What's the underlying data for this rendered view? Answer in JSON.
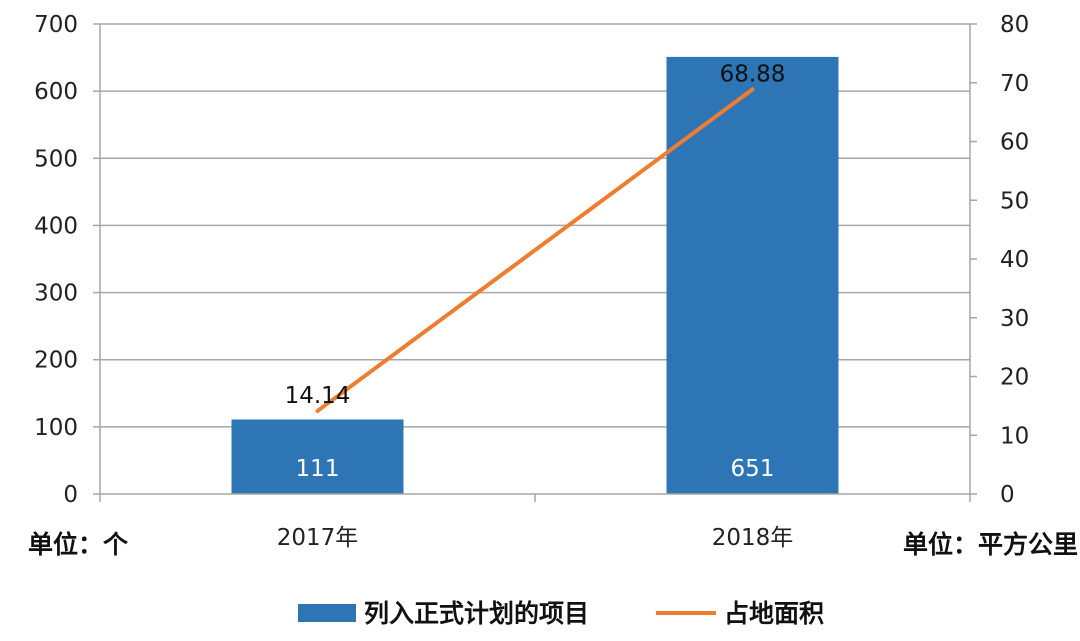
{
  "chart_data": {
    "type": "bar",
    "categories": [
      "2017年",
      "2018年"
    ],
    "series": [
      {
        "name": "列入正式计划的项目",
        "type": "bar",
        "axis": "left",
        "values": [
          111,
          651
        ],
        "color": "#2E75B6"
      },
      {
        "name": "占地面积",
        "type": "line",
        "axis": "right",
        "values": [
          14.14,
          68.88
        ],
        "color": "#ED7D31"
      }
    ],
    "left_axis": {
      "unit_label": "单位：个",
      "ylim": [
        0,
        700
      ],
      "ticks": [
        0,
        100,
        200,
        300,
        400,
        500,
        600,
        700
      ]
    },
    "right_axis": {
      "unit_label": "单位：平方公里",
      "ylim": [
        0,
        80
      ],
      "ticks": [
        0,
        10,
        20,
        30,
        40,
        50,
        60,
        70,
        80
      ]
    },
    "grid": true,
    "legend_position": "bottom"
  }
}
